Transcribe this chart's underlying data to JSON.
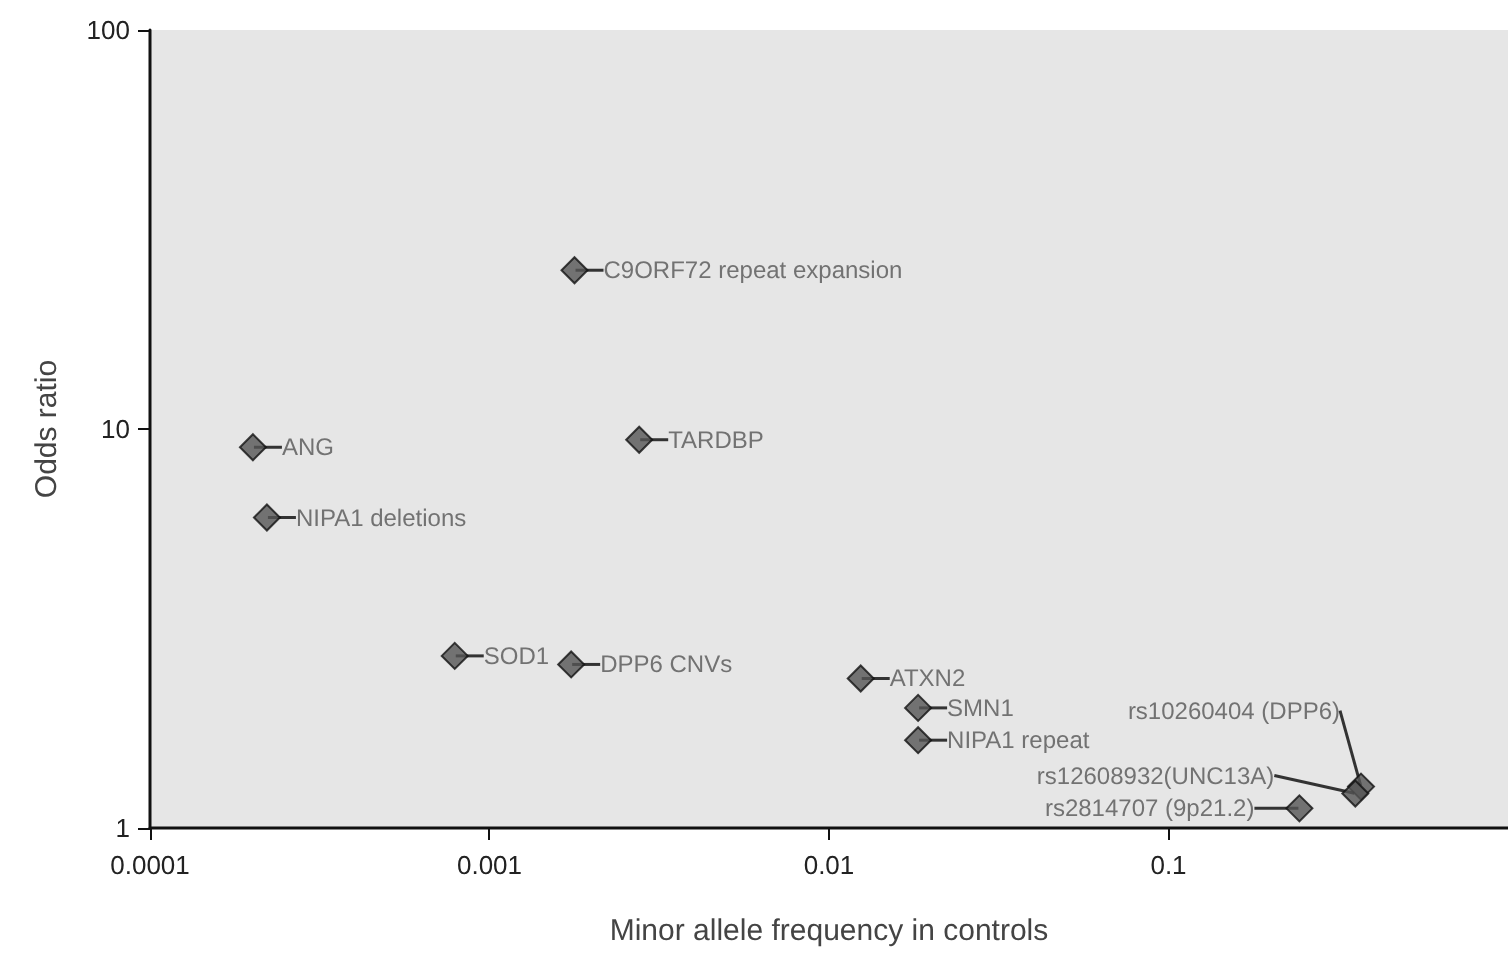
{
  "chart_data": {
    "type": "scatter",
    "xlabel": "Minor allele frequency in controls",
    "ylabel": "Odds ratio",
    "log": "xy",
    "marker": "diamond",
    "grid": false,
    "x": [
      0.00178,
      0.000201,
      0.00276,
      0.000221,
      0.00079,
      0.00174,
      0.0124,
      0.0183,
      0.0183,
      0.369,
      0.355,
      0.243
    ],
    "series": [
      {
        "color": "#555555",
        "values": [
          25,
          9.0,
          9.4,
          6.0,
          2.7,
          2.57,
          2.37,
          2.0,
          1.66,
          1.27,
          1.22,
          1.12
        ]
      }
    ],
    "xlim": [
      0.0001,
      1
    ],
    "xticks": [
      0.0001,
      0.001,
      0.01,
      0.1
    ],
    "ylim": [
      1,
      100
    ],
    "yticks": [
      1,
      10,
      100
    ],
    "annotations": [
      {
        "text": "C9ORF72 repeat expansion",
        "x": 0.00178,
        "y": 25
      },
      {
        "text": "ANG",
        "x": 0.000201,
        "y": 9.0
      },
      {
        "text": "TARDBP",
        "x": 0.00276,
        "y": 9.4
      },
      {
        "text": "NIPA1 deletions",
        "x": 0.000221,
        "y": 6.0
      },
      {
        "text": "SOD1",
        "x": 0.00079,
        "y": 2.7
      },
      {
        "text": "DPP6 CNVs",
        "x": 0.00174,
        "y": 2.57
      },
      {
        "text": "ATXN2",
        "x": 0.0124,
        "y": 2.37
      },
      {
        "text": "SMN1",
        "x": 0.0183,
        "y": 2.0
      },
      {
        "text": "NIPA1 repeat",
        "x": 0.0183,
        "y": 1.66
      },
      {
        "text": "rs10260404 (DPP6)",
        "x": 0.369,
        "y": 1.27
      },
      {
        "text": "rs12608932(UNC13A)",
        "x": 0.355,
        "y": 1.22
      },
      {
        "text": "rs2814707 (9p21.2)",
        "x": 0.243,
        "y": 1.12
      }
    ]
  }
}
